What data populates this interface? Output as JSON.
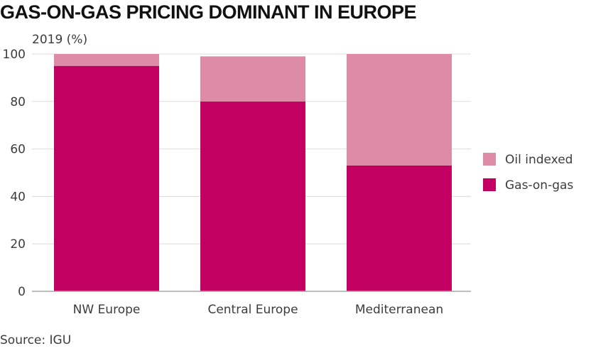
{
  "header": {
    "title": "GAS-ON-GAS PRICING DOMINANT IN EUROPE",
    "unit_label": "2019 (%)"
  },
  "footer": {
    "source": "Source: IGU"
  },
  "colors": {
    "gas_on_gas": "#c20062",
    "oil_indexed": "#dd8ba6",
    "gridline": "#dcdcdc",
    "axis": "#a8a8a8",
    "text": "#3c3c3c"
  },
  "chart_data": {
    "type": "bar",
    "stacked": true,
    "title": "GAS-ON-GAS PRICING DOMINANT IN EUROPE",
    "subtitle": "2019 (%)",
    "categories": [
      "NW Europe",
      "Central Europe",
      "Mediterranean"
    ],
    "series": [
      {
        "name": "Gas-on-gas",
        "values": [
          95,
          80,
          53
        ]
      },
      {
        "name": "Oil indexed",
        "values": [
          5,
          19,
          47
        ]
      }
    ],
    "ylim": [
      0,
      100
    ],
    "yticks": [
      0,
      20,
      40,
      60,
      80,
      100
    ],
    "grid": true,
    "legend_position": "right",
    "legend_order": [
      "Oil indexed",
      "Gas-on-gas"
    ]
  }
}
